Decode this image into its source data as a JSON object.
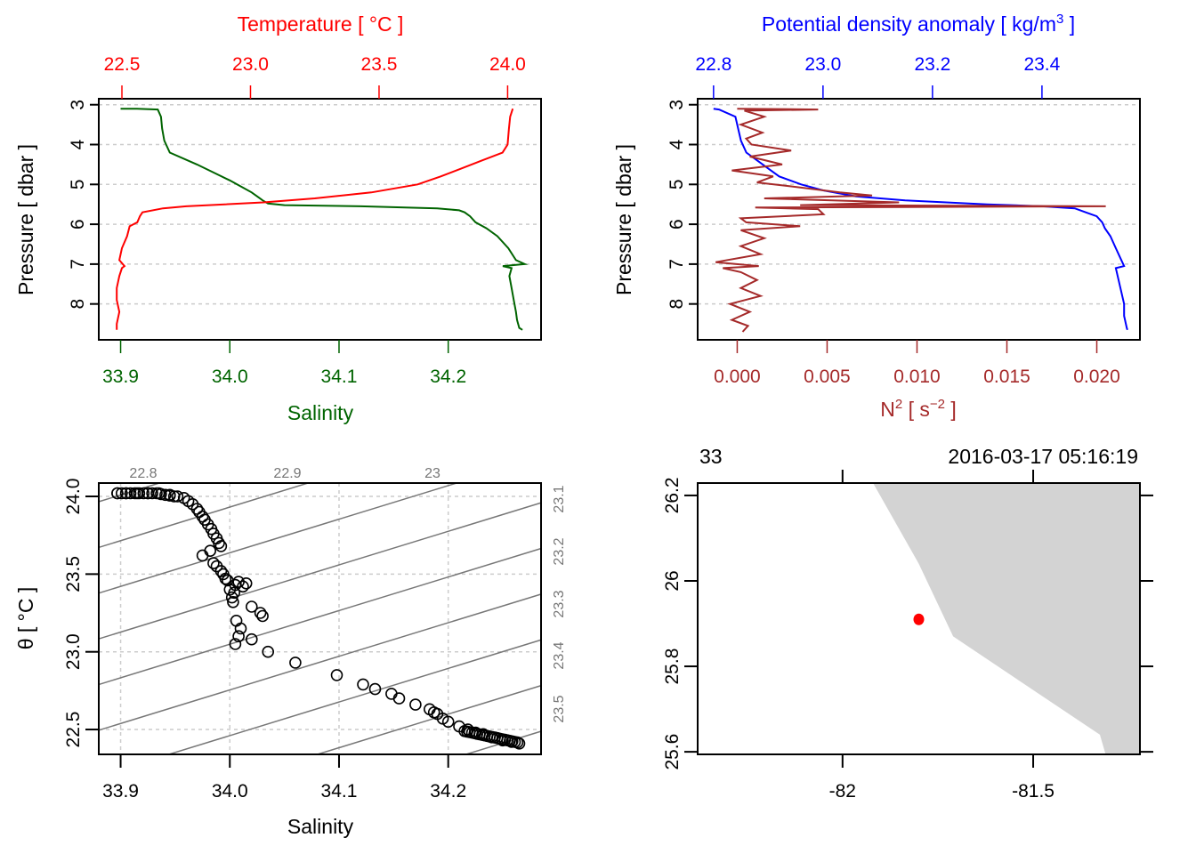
{
  "chart_data": [
    {
      "id": "profile_ts",
      "type": "line",
      "title": "",
      "top_axis_label": "Temperature [ °C ]",
      "top_axis_color": "#ff0000",
      "top_ticks": [
        "22.5",
        "23.0",
        "23.5",
        "24.0"
      ],
      "top_tick_values": [
        22.5,
        23.0,
        23.5,
        24.0
      ],
      "xlabel": "Salinity",
      "xlabel_color": "#006400",
      "x_ticks": [
        "33.9",
        "34.0",
        "34.1",
        "34.2"
      ],
      "x_tick_values": [
        33.9,
        34.0,
        34.1,
        34.2
      ],
      "ylabel": "Pressure [ dbar ]",
      "y_ticks": [
        "3",
        "4",
        "5",
        "6",
        "7",
        "8"
      ],
      "y_tick_values": [
        3,
        4,
        5,
        6,
        7,
        8
      ],
      "ylim": [
        8.9,
        2.85
      ],
      "xlim": [
        33.88,
        34.285
      ],
      "top_lim": [
        22.41,
        24.13
      ],
      "grid": "horizontal dashed",
      "series": [
        {
          "name": "Salinity",
          "color": "#006400",
          "axis": "bottom",
          "pressure": [
            3.1,
            3.1,
            3.12,
            3.3,
            3.6,
            3.9,
            4.2,
            4.5,
            4.7,
            4.9,
            5.05,
            5.2,
            5.3,
            5.4,
            5.48,
            5.52,
            5.55,
            5.6,
            5.65,
            5.7,
            5.8,
            5.95,
            6.1,
            6.3,
            6.6,
            6.9,
            7.0,
            7.05,
            7.1,
            7.3,
            7.6,
            7.9,
            8.2,
            8.4,
            8.6,
            8.65
          ],
          "values": [
            33.9,
            33.915,
            33.934,
            33.937,
            33.938,
            33.94,
            33.945,
            33.97,
            33.985,
            34.0,
            34.01,
            34.02,
            34.025,
            34.03,
            34.035,
            34.05,
            34.12,
            34.19,
            34.21,
            34.215,
            34.22,
            34.225,
            34.235,
            34.245,
            34.255,
            34.262,
            34.27,
            34.25,
            34.258,
            34.256,
            34.258,
            34.26,
            34.262,
            34.263,
            34.265,
            34.268
          ]
        },
        {
          "name": "Temperature",
          "color": "#ff0000",
          "axis": "top",
          "pressure": [
            3.1,
            3.3,
            3.6,
            4.0,
            4.2,
            4.4,
            4.6,
            4.8,
            5.0,
            5.2,
            5.35,
            5.45,
            5.5,
            5.55,
            5.6,
            5.7,
            5.8,
            5.95,
            6.05,
            6.3,
            6.6,
            6.9,
            7.05,
            7.1,
            7.3,
            7.6,
            7.9,
            8.2,
            8.5,
            8.65
          ],
          "values": [
            24.02,
            24.01,
            24.005,
            24.0,
            23.98,
            23.9,
            23.82,
            23.74,
            23.65,
            23.47,
            23.25,
            23.05,
            22.9,
            22.75,
            22.66,
            22.58,
            22.57,
            22.56,
            22.53,
            22.52,
            22.5,
            22.49,
            22.51,
            22.5,
            22.49,
            22.48,
            22.48,
            22.49,
            22.48,
            22.48
          ]
        }
      ]
    },
    {
      "id": "profile_density_n2",
      "type": "line",
      "title": "",
      "top_axis_label": "Potential density anomaly [ kg/m³ ]",
      "top_axis_color": "#0000ff",
      "top_ticks": [
        "22.8",
        "23.0",
        "23.2",
        "23.4"
      ],
      "top_tick_values": [
        22.8,
        23.0,
        23.2,
        23.4
      ],
      "xlabel": "N² [ s⁻² ]",
      "xlabel_color": "#a52a2a",
      "x_ticks": [
        "0.000",
        "0.005",
        "0.010",
        "0.015",
        "0.020"
      ],
      "x_tick_values": [
        0.0,
        0.005,
        0.01,
        0.015,
        0.02
      ],
      "ylabel": "Pressure [ dbar ]",
      "y_ticks": [
        "3",
        "4",
        "5",
        "6",
        "7",
        "8"
      ],
      "y_tick_values": [
        3,
        4,
        5,
        6,
        7,
        8
      ],
      "ylim": [
        8.9,
        2.85
      ],
      "xlim": [
        -0.0022,
        0.0224
      ],
      "top_lim": [
        22.771,
        23.579
      ],
      "grid": "horizontal dashed",
      "series": [
        {
          "name": "Potential density anomaly",
          "color": "#0000ff",
          "axis": "top",
          "pressure": [
            3.1,
            3.12,
            3.3,
            3.6,
            3.9,
            4.2,
            4.4,
            4.6,
            4.8,
            5.0,
            5.15,
            5.3,
            5.4,
            5.5,
            5.55,
            5.6,
            5.7,
            5.8,
            5.95,
            6.1,
            6.3,
            6.6,
            6.9,
            7.05,
            7.1,
            7.4,
            7.7,
            8.0,
            8.3,
            8.6,
            8.65
          ],
          "values": [
            22.8,
            22.81,
            22.84,
            22.845,
            22.85,
            22.86,
            22.88,
            22.9,
            22.92,
            22.96,
            23.0,
            23.06,
            23.15,
            23.3,
            23.4,
            23.46,
            23.48,
            23.5,
            23.51,
            23.515,
            23.525,
            23.535,
            23.545,
            23.55,
            23.535,
            23.54,
            23.545,
            23.55,
            23.55,
            23.555,
            23.556
          ]
        },
        {
          "name": "N²",
          "color": "#a52a2a",
          "axis": "bottom",
          "pressure": [
            3.1,
            3.12,
            3.15,
            3.3,
            3.5,
            3.7,
            3.85,
            4.0,
            4.15,
            4.3,
            4.5,
            4.65,
            4.8,
            4.95,
            5.05,
            5.2,
            5.28,
            5.35,
            5.45,
            5.52,
            5.55,
            5.58,
            5.62,
            5.75,
            5.85,
            5.95,
            6.05,
            6.15,
            6.35,
            6.55,
            6.75,
            6.95,
            7.05,
            7.1,
            7.2,
            7.4,
            7.6,
            7.8,
            8.0,
            8.2,
            8.4,
            8.55,
            8.7
          ],
          "values": [
            0.0,
            0.0045,
            0.0004,
            0.0015,
            0.0002,
            0.0014,
            0.0005,
            0.0008,
            0.003,
            0.0007,
            0.0025,
            -0.0003,
            0.002,
            0.0011,
            0.003,
            0.0057,
            0.0075,
            0.0015,
            0.009,
            0.0035,
            0.0205,
            0.001,
            0.0045,
            0.0048,
            0.0002,
            0.0005,
            0.0035,
            0.0002,
            0.0015,
            0.0002,
            0.0013,
            -0.0012,
            0.0012,
            -0.0008,
            0.0002,
            0.0011,
            0.0002,
            0.0013,
            -0.0004,
            0.0007,
            -0.0003,
            0.0006,
            0.0003
          ]
        }
      ]
    },
    {
      "id": "ts_diagram",
      "type": "scatter",
      "title": "",
      "xlabel": "Salinity",
      "ylabel": "θ [ °C ]",
      "x_ticks": [
        "33.9",
        "34.0",
        "34.1",
        "34.2"
      ],
      "x_tick_values": [
        33.9,
        34.0,
        34.1,
        34.2
      ],
      "y_ticks": [
        "22.5",
        "23.0",
        "23.5",
        "24.0"
      ],
      "y_tick_values": [
        22.5,
        23.0,
        23.5,
        24.0
      ],
      "xlim": [
        33.88,
        34.285
      ],
      "ylim": [
        22.34,
        24.086
      ],
      "grid": "dashed",
      "isopycnal_color": "#777777",
      "isopycnal_top_labels": [
        "22.8",
        "22.9",
        "23"
      ],
      "isopycnal_right_labels": [
        "23.1",
        "23.2",
        "23.3",
        "23.4",
        "23.5"
      ],
      "isopycnals": [
        22.8,
        22.9,
        23.0,
        23.1,
        23.2,
        23.3,
        23.4,
        23.5,
        23.6
      ],
      "x": [
        33.897,
        33.905,
        33.915,
        33.925,
        33.935,
        33.945,
        33.952,
        33.958,
        33.962,
        33.966,
        33.97,
        33.972,
        33.975,
        33.977,
        33.98,
        33.983,
        33.985,
        33.988,
        33.99,
        33.992,
        33.975,
        33.982,
        33.985,
        33.988,
        33.992,
        33.994,
        33.996,
        33.998,
        34.0,
        34.005,
        34.008,
        34.004,
        34.002,
        34.003,
        34.006,
        34.01,
        34.012,
        34.015,
        34.02,
        34.028,
        34.03,
        34.008,
        34.005,
        34.02,
        34.035,
        34.06,
        34.098,
        34.122,
        34.133,
        34.148,
        34.155,
        34.17,
        34.183,
        34.187,
        34.19,
        34.195,
        34.2,
        34.21,
        34.218,
        34.225,
        34.232,
        34.24,
        34.25,
        34.258,
        34.265
      ],
      "y": [
        24.02,
        24.02,
        24.02,
        24.02,
        24.02,
        24.01,
        24.0,
        23.99,
        23.97,
        23.95,
        23.92,
        23.9,
        23.87,
        23.85,
        23.82,
        23.79,
        23.76,
        23.73,
        23.7,
        23.68,
        23.62,
        23.65,
        23.57,
        23.55,
        23.52,
        23.5,
        23.47,
        23.46,
        23.4,
        23.43,
        23.45,
        23.38,
        23.35,
        23.32,
        23.2,
        23.15,
        23.42,
        23.44,
        23.29,
        23.25,
        23.23,
        23.1,
        23.05,
        23.08,
        23.0,
        22.93,
        22.85,
        22.79,
        22.76,
        22.73,
        22.7,
        22.66,
        22.63,
        22.61,
        22.6,
        22.57,
        22.55,
        22.52,
        22.5,
        22.48,
        22.47,
        22.45,
        22.43,
        22.42,
        22.41
      ]
    },
    {
      "id": "station_map",
      "type": "map",
      "top_left_label": "33",
      "top_right_label": "2016-03-17 05:16:19",
      "x_ticks": [
        "-82",
        "-81.5"
      ],
      "x_tick_values": [
        -82,
        -81.5
      ],
      "y_ticks": [
        "25.6",
        "25.8",
        "26",
        "26.2"
      ],
      "y_tick_values": [
        25.6,
        25.8,
        26.0,
        26.2
      ],
      "xlim": [
        -82.38,
        -81.22
      ],
      "ylim": [
        25.594,
        26.229
      ],
      "land_color": "#d3d3d3",
      "land_polygon": {
        "lon": [
          -81.92,
          -81.22,
          -81.22,
          -81.31,
          -81.325,
          -81.71,
          -81.8,
          -81.92
        ],
        "lat": [
          26.229,
          26.229,
          25.594,
          25.594,
          25.64,
          25.87,
          26.04,
          26.229
        ]
      },
      "station": {
        "lon": -81.8,
        "lat": 25.91,
        "color": "#ff0000"
      }
    }
  ]
}
